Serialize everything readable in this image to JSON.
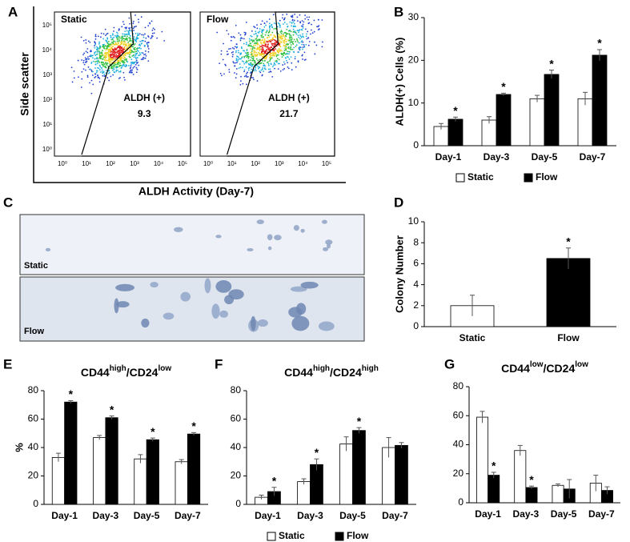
{
  "panel_labels": [
    "A",
    "B",
    "C",
    "D",
    "E",
    "F",
    "G"
  ],
  "flow_cytometry": {
    "y_label": "Side scatter",
    "x_label": "ALDH Activity (Day-7)",
    "ticks": [
      "10⁰",
      "10¹",
      "10²",
      "10³",
      "10⁴",
      "10⁵"
    ],
    "plots": [
      {
        "name": "Static",
        "gate_label": "ALDH (+)",
        "gate_value": 9.3
      },
      {
        "name": "Flow",
        "gate_label": "ALDH (+)",
        "gate_value": 21.7
      }
    ]
  },
  "micrographs": {
    "labels": [
      "Static",
      "Flow"
    ]
  },
  "chart_data": [
    {
      "type": "bar",
      "y_label": "ALDH(+) Cells (%)",
      "categories": [
        "Day-1",
        "Day-3",
        "Day-5",
        "Day-7"
      ],
      "series": [
        {
          "name": "Static",
          "color": "#ffffff",
          "values": [
            4.5,
            6,
            11,
            11
          ],
          "errors": [
            0.7,
            0.8,
            0.8,
            1.5
          ],
          "markers": [
            null,
            null,
            null,
            null
          ]
        },
        {
          "name": "Flow",
          "color": "#000000",
          "values": [
            6.2,
            12,
            16.7,
            21.2
          ],
          "errors": [
            0.5,
            0.3,
            1,
            1.3
          ],
          "markers": [
            "*",
            "*",
            "*",
            "*"
          ]
        }
      ],
      "ylim": [
        0,
        30
      ],
      "yticks": [
        0,
        10,
        20,
        30
      ],
      "legend": "bottom"
    },
    {
      "type": "bar",
      "y_label": "Colony Number",
      "categories": [
        "Static",
        "Flow"
      ],
      "series": [
        {
          "colors": [
            "#ffffff",
            "#000000"
          ],
          "values": [
            2,
            6.5
          ],
          "errors": [
            1,
            1
          ],
          "markers": [
            null,
            "*"
          ]
        }
      ],
      "ylim": [
        0,
        10
      ],
      "yticks": [
        0,
        2,
        4,
        6,
        8,
        10
      ]
    },
    {
      "type": "bar",
      "title": [
        "CD44",
        "high",
        "/CD24",
        "low"
      ],
      "y_label": "%",
      "categories": [
        "Day-1",
        "Day-3",
        "Day-5",
        "Day-7"
      ],
      "series": [
        {
          "name": "Static",
          "color": "#ffffff",
          "values": [
            33,
            47,
            32,
            30
          ],
          "errors": [
            3,
            1.5,
            3,
            1.5
          ],
          "markers": [
            null,
            null,
            null,
            null
          ]
        },
        {
          "name": "Flow",
          "color": "#000000",
          "values": [
            72,
            61,
            45.5,
            49.5
          ],
          "errors": [
            1,
            1.2,
            1.2,
            1
          ],
          "markers": [
            "*",
            "*",
            "*",
            "*"
          ]
        }
      ],
      "ylim": [
        0,
        80
      ],
      "yticks": [
        0,
        20,
        40,
        60,
        80
      ]
    },
    {
      "type": "bar",
      "title": [
        "CD44",
        "high",
        "/CD24",
        "high"
      ],
      "categories": [
        "Day-1",
        "Day-3",
        "Day-5",
        "Day-7"
      ],
      "series": [
        {
          "name": "Static",
          "color": "#ffffff",
          "values": [
            5,
            16,
            42.5,
            40
          ],
          "errors": [
            1.5,
            2,
            5,
            7
          ],
          "markers": [
            null,
            null,
            null,
            null
          ]
        },
        {
          "name": "Flow",
          "color": "#000000",
          "values": [
            9,
            28,
            52,
            41.5
          ],
          "errors": [
            3,
            4,
            2,
            2
          ],
          "markers": [
            "*",
            "*",
            "*",
            null
          ]
        }
      ],
      "ylim": [
        0,
        80
      ],
      "yticks": [
        0,
        20,
        40,
        60,
        80
      ],
      "legend": "bottom"
    },
    {
      "type": "bar",
      "title": [
        "CD44",
        "low",
        "/CD24",
        "low"
      ],
      "categories": [
        "Day-1",
        "Day-3",
        "Day-5",
        "Day-7"
      ],
      "series": [
        {
          "name": "Static",
          "color": "#ffffff",
          "values": [
            59,
            36,
            12,
            13.5
          ],
          "errors": [
            4,
            3.5,
            1,
            5.5
          ],
          "markers": [
            null,
            null,
            null,
            null
          ]
        },
        {
          "name": "Flow",
          "color": "#000000",
          "values": [
            19,
            10.5,
            9.5,
            8.5
          ],
          "errors": [
            2,
            1,
            6.5,
            2.5
          ],
          "markers": [
            "*",
            "*",
            null,
            null
          ]
        }
      ],
      "ylim": [
        0,
        80
      ],
      "yticks": [
        0,
        20,
        40,
        60,
        80
      ]
    }
  ]
}
